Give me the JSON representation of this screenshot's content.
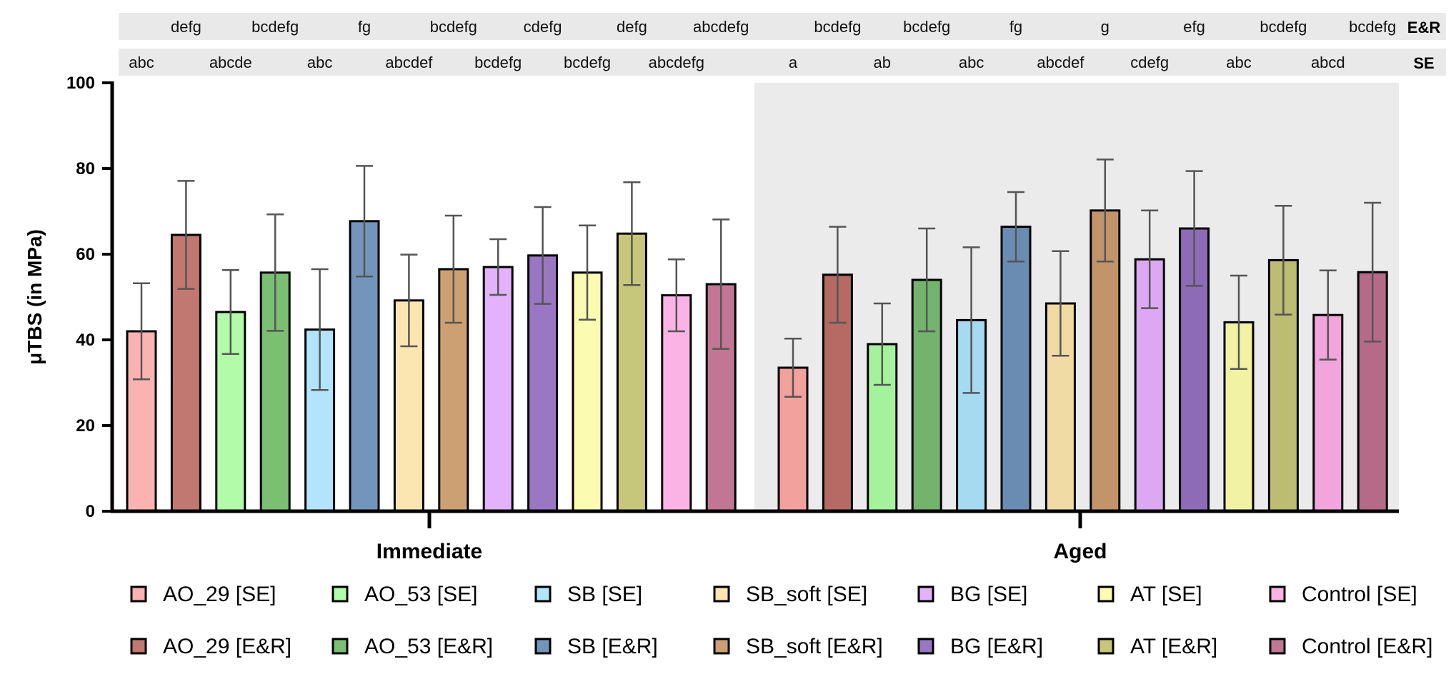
{
  "chart_data": {
    "type": "bar",
    "ylabel": "μTBS (in MPa)",
    "ylim": [
      0,
      100
    ],
    "yticks": [
      0,
      20,
      40,
      60,
      80,
      100
    ],
    "groups": [
      "Immediate",
      "Aged"
    ],
    "series": [
      {
        "name": "AO_29 [SE]",
        "color": "#fbb3b1",
        "aged_color": "#f2a19d",
        "values": [
          42,
          33.5
        ],
        "errors": [
          11.2,
          6.8
        ],
        "letters_se": [
          "abc",
          "a"
        ]
      },
      {
        "name": "AO_29 [E&R]",
        "color": "#c17871",
        "aged_color": "#b56a63",
        "values": [
          64.5,
          55.2
        ],
        "errors": [
          12.6,
          11.2
        ],
        "letters_er": [
          "defg",
          "bcdefg"
        ]
      },
      {
        "name": "AO_53 [SE]",
        "color": "#b2fba9",
        "aged_color": "#a4f39c",
        "values": [
          46.5,
          39
        ],
        "errors": [
          9.8,
          9.5
        ],
        "letters_se": [
          "abcde",
          "ab"
        ]
      },
      {
        "name": "AO_53 [E&R]",
        "color": "#7bbf73",
        "aged_color": "#73b36b",
        "values": [
          55.7,
          54
        ],
        "errors": [
          13.6,
          12
        ],
        "letters_er": [
          "bcdefg",
          "bcdefg"
        ]
      },
      {
        "name": "SB [SE]",
        "color": "#b2e5fb",
        "aged_color": "#a6daf0",
        "values": [
          42.4,
          44.6
        ],
        "errors": [
          14.1,
          17
        ],
        "letters_se": [
          "abc",
          "abc"
        ]
      },
      {
        "name": "SB [E&R]",
        "color": "#7495bb",
        "aged_color": "#6a8cb3",
        "values": [
          67.7,
          66.4
        ],
        "errors": [
          12.9,
          8.1
        ],
        "letters_er": [
          "fg",
          "fg"
        ]
      },
      {
        "name": "SB_soft [SE]",
        "color": "#fbe5b1",
        "aged_color": "#f1dba5",
        "values": [
          49.2,
          48.5
        ],
        "errors": [
          10.7,
          12.2
        ],
        "letters_se": [
          "abcdef",
          "abcdef"
        ]
      },
      {
        "name": "SB_soft [E&R]",
        "color": "#cda073",
        "aged_color": "#c2946a",
        "values": [
          56.5,
          70.2
        ],
        "errors": [
          12.5,
          11.9
        ],
        "letters_er": [
          "bcdefg",
          "g"
        ]
      },
      {
        "name": "BG [SE]",
        "color": "#e3b2fb",
        "aged_color": "#dca8f3",
        "values": [
          57,
          58.8
        ],
        "errors": [
          6.5,
          11.4
        ],
        "letters_se": [
          "bcdefg",
          "cdefg"
        ]
      },
      {
        "name": "BG [E&R]",
        "color": "#9a77c2",
        "aged_color": "#8e6bb6",
        "values": [
          59.7,
          66
        ],
        "errors": [
          11.3,
          13.4
        ],
        "letters_er": [
          "cdefg",
          "efg"
        ]
      },
      {
        "name": "AT [SE]",
        "color": "#fbfbb1",
        "aged_color": "#f2f2a5",
        "values": [
          55.7,
          44.1
        ],
        "errors": [
          11,
          10.9
        ],
        "letters_se": [
          "bcdefg",
          "abc"
        ]
      },
      {
        "name": "AT [E&R]",
        "color": "#c7c77c",
        "aged_color": "#bcbc72",
        "values": [
          64.8,
          58.6
        ],
        "errors": [
          12,
          12.7
        ],
        "letters_er": [
          "defg",
          "bcdefg"
        ]
      },
      {
        "name": "Control [SE]",
        "color": "#fbb3e5",
        "aged_color": "#f2a5dc",
        "values": [
          50.4,
          45.8
        ],
        "errors": [
          8.4,
          10.4
        ],
        "letters_se": [
          "abcdefg",
          "abcd"
        ]
      },
      {
        "name": "Control [E&R]",
        "color": "#c17793",
        "aged_color": "#b56a88",
        "values": [
          53,
          55.8
        ],
        "errors": [
          15.1,
          16.2
        ],
        "letters_er": [
          "abcdefg",
          "bcdefg"
        ]
      }
    ],
    "letter_rows": {
      "er_label": "E&R",
      "se_label": "SE"
    }
  }
}
